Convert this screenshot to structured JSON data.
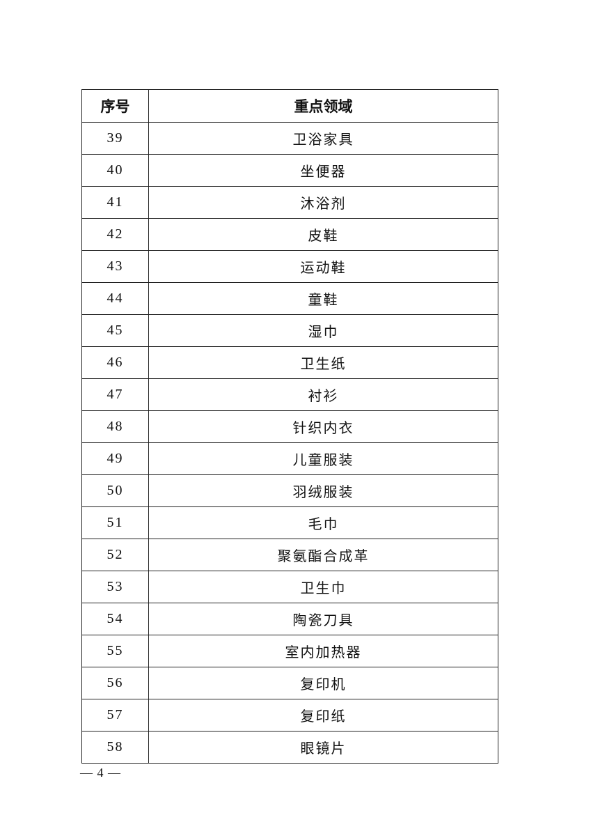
{
  "table": {
    "headers": [
      "序号",
      "重点领域"
    ],
    "rows": [
      [
        "39",
        "卫浴家具"
      ],
      [
        "40",
        "坐便器"
      ],
      [
        "41",
        "沐浴剂"
      ],
      [
        "42",
        "皮鞋"
      ],
      [
        "43",
        "运动鞋"
      ],
      [
        "44",
        "童鞋"
      ],
      [
        "45",
        "湿巾"
      ],
      [
        "46",
        "卫生纸"
      ],
      [
        "47",
        "衬衫"
      ],
      [
        "48",
        "针织内衣"
      ],
      [
        "49",
        "儿童服装"
      ],
      [
        "50",
        "羽绒服装"
      ],
      [
        "51",
        "毛巾"
      ],
      [
        "52",
        "聚氨酯合成革"
      ],
      [
        "53",
        "卫生巾"
      ],
      [
        "54",
        "陶瓷刀具"
      ],
      [
        "55",
        "室内加热器"
      ],
      [
        "56",
        "复印机"
      ],
      [
        "57",
        "复印纸"
      ],
      [
        "58",
        "眼镜片"
      ]
    ]
  },
  "footer": {
    "page_number": "— 4 —"
  }
}
